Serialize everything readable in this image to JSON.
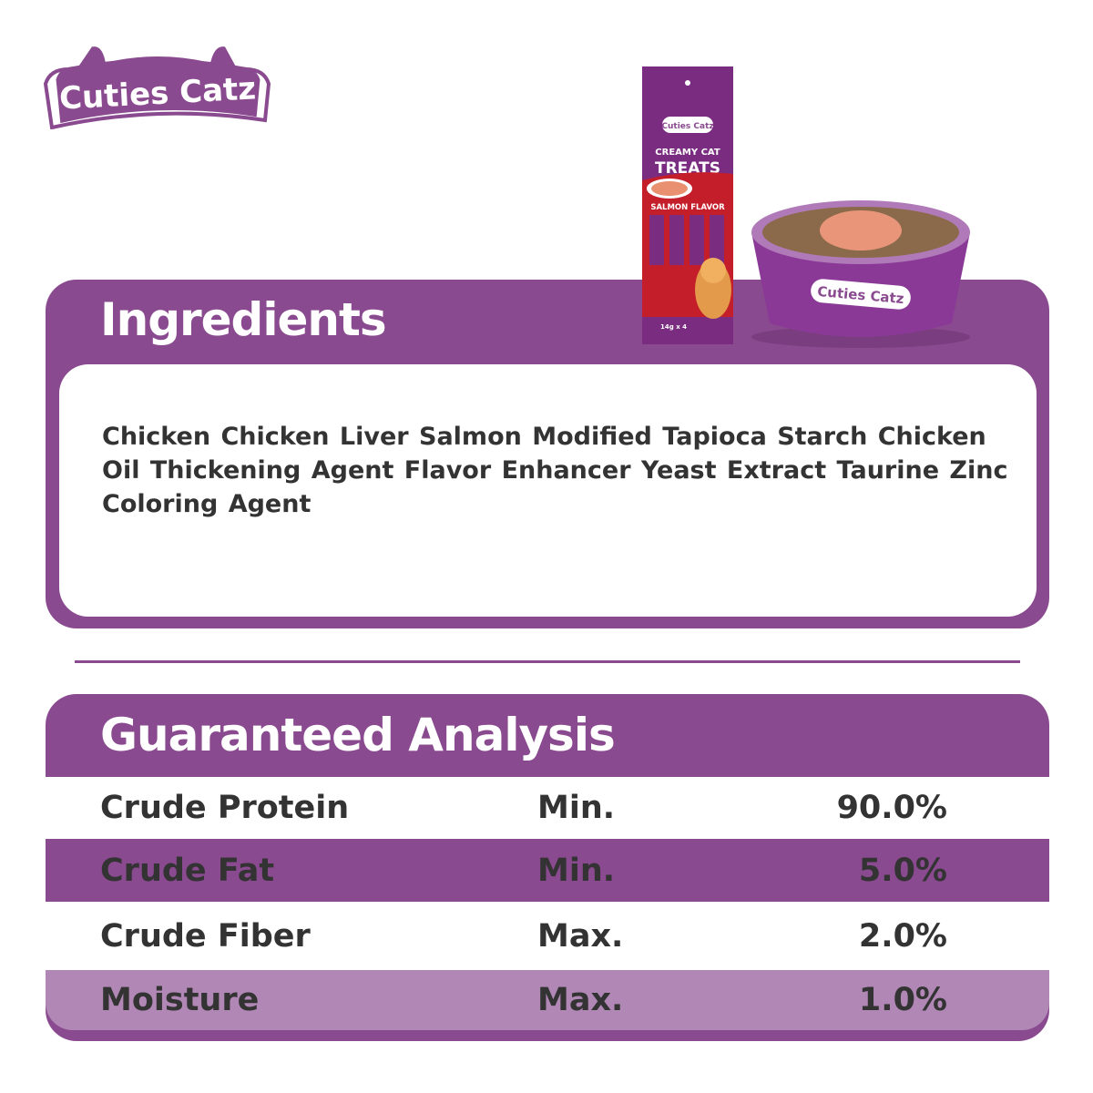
{
  "brand": {
    "name": "Cuties Catz",
    "color": "#8a4a8f",
    "light_color": "#b087b5"
  },
  "product": {
    "line1": "CREAMY CAT",
    "line2": "TREATS",
    "flavor": "SALMON FLAVOR",
    "size": "14g x 4"
  },
  "ingredients": {
    "title": "Ingredients",
    "text": "Chicken Chicken Liver Salmon Modified  Tapioca Starch Chicken Oil Thickening Agent Flavor Enhancer Yeast Extract  Taurine  Zinc Coloring Agent"
  },
  "analysis": {
    "title": "Guaranteed Analysis",
    "rows": [
      {
        "name": "Crude Protein",
        "qualifier": "Min.",
        "value": "90.0%"
      },
      {
        "name": "Crude Fat",
        "qualifier": "Min.",
        "value": "5.0%"
      },
      {
        "name": "Crude Fiber",
        "qualifier": "Max.",
        "value": "2.0%"
      },
      {
        "name": "Moisture",
        "qualifier": "Max.",
        "value": "1.0%"
      }
    ]
  }
}
